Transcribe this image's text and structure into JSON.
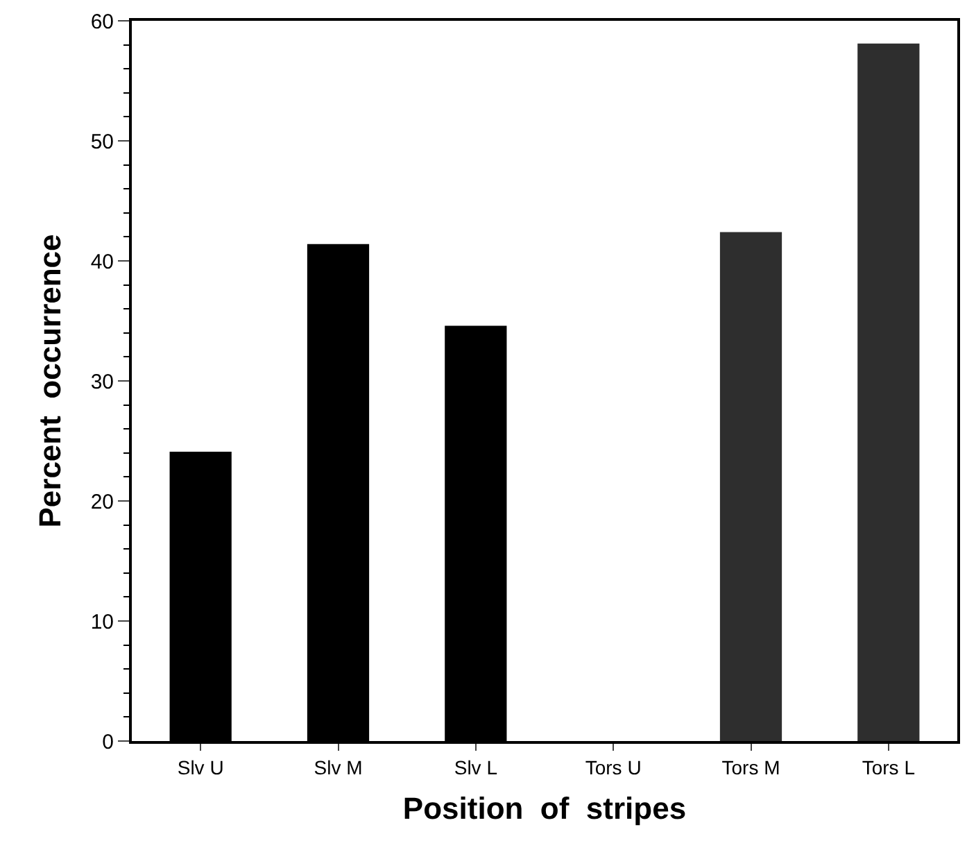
{
  "chart_data": {
    "type": "bar",
    "xlabel": "Position  of  stripes",
    "ylabel": "Percent  occurrence",
    "categories": [
      "Slv U",
      "Slv M",
      "Slv L",
      "Tors U",
      "Tors M",
      "Tors L"
    ],
    "values": [
      24.1,
      41.4,
      34.6,
      0,
      42.4,
      58.1
    ],
    "colors": [
      "#000000",
      "#000000",
      "#000000",
      "#000000",
      "#2e2e2e",
      "#2e2e2e"
    ],
    "ylim": [
      0,
      60
    ],
    "yticks": [
      0,
      10,
      20,
      30,
      40,
      50,
      60
    ]
  }
}
